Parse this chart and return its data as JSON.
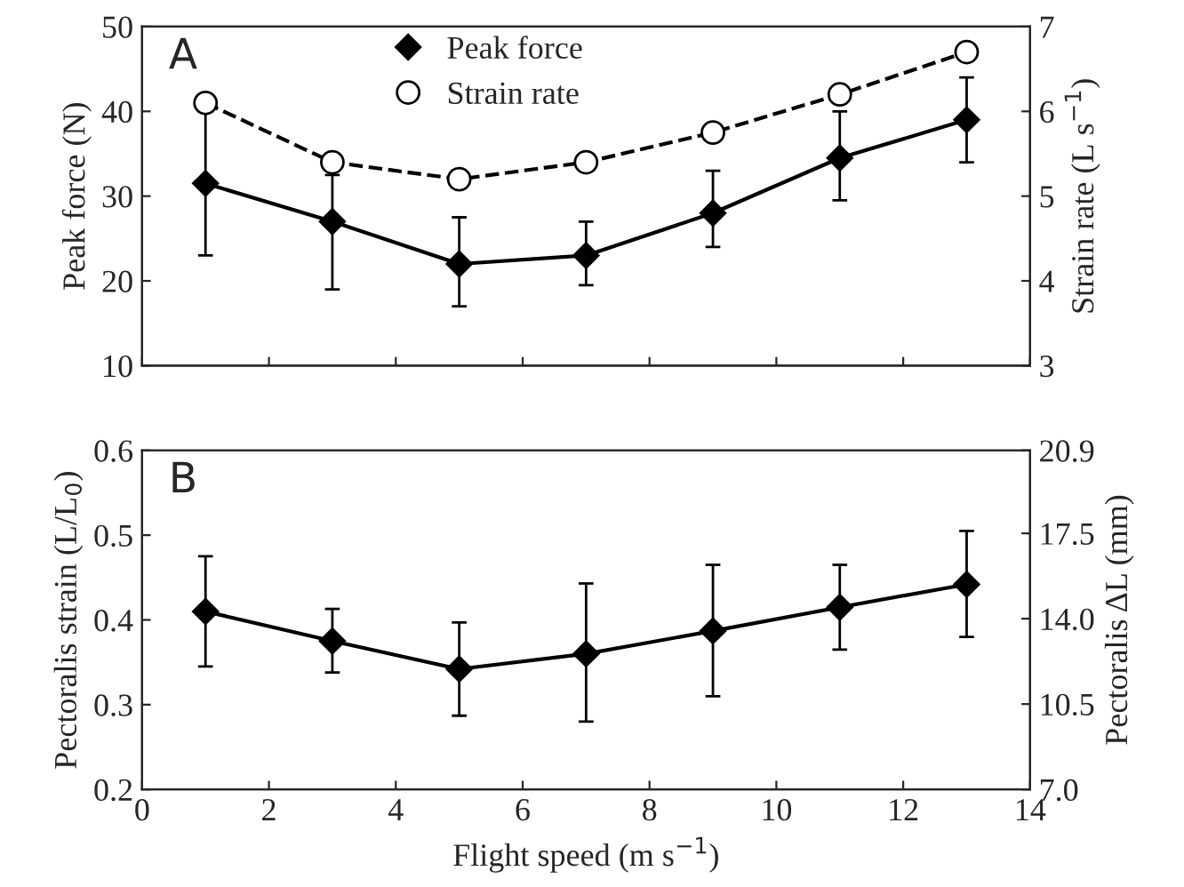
{
  "chart_data": [
    {
      "type": "line",
      "title": "A",
      "ylabel": "Peak force (N)",
      "y2label": "Strain rate (L s$^{−1}$)",
      "x": [
        1,
        3,
        5,
        7,
        9,
        11,
        13
      ],
      "xlim": [
        0,
        14
      ],
      "xticks": [
        0,
        2,
        4,
        6,
        8,
        10,
        12,
        14
      ],
      "ylim": [
        10,
        50
      ],
      "yticks": [
        10,
        20,
        30,
        40,
        50
      ],
      "y2lim": [
        3,
        7
      ],
      "y2ticks": [
        3,
        4,
        5,
        6,
        7
      ],
      "tick_labels": "y",
      "legend": "top",
      "grid": false,
      "series": [
        {
          "name": "Peak force",
          "color": "#000000",
          "marker": "diamond",
          "line_style": "solid",
          "values": [
            31.5,
            27,
            22,
            23,
            28,
            34.5,
            39
          ],
          "errors": [
            [
              23,
              40
            ],
            [
              19,
              32.5
            ],
            [
              17,
              27.5
            ],
            [
              19.5,
              27
            ],
            [
              24,
              33
            ],
            [
              29.5,
              40
            ],
            [
              34,
              44
            ]
          ]
        },
        {
          "name": "Strain rate",
          "color": "#000000",
          "marker": "circle",
          "line_style": "dashed",
          "axis": "y2",
          "values": [
            6.1,
            5.4,
            5.2,
            5.4,
            5.75,
            6.2,
            6.7
          ]
        }
      ]
    },
    {
      "type": "line",
      "title": "B",
      "xlabel": "Flight speed (m s$^{−1}$)",
      "ylabel": "Pectoralis strain (L/L$_{0}$)",
      "y2label": "Pectoralis ΔL (mm)",
      "x": [
        1,
        3,
        5,
        7,
        9,
        11,
        13
      ],
      "xlim": [
        0,
        14
      ],
      "xticks": [
        0,
        2,
        4,
        6,
        8,
        10,
        12,
        14
      ],
      "ylim": [
        0.2,
        0.6
      ],
      "yticks": [
        0.2,
        0.3,
        0.4,
        0.5,
        0.6
      ],
      "y2lim": [
        7.0,
        20.9
      ],
      "y2ticks": [
        {
          "value": 7.0,
          "label": "7.0"
        },
        {
          "value": 10.5,
          "label": "10.5"
        },
        {
          "value": 14.0,
          "label": "14.0"
        },
        {
          "value": 17.5,
          "label": "17.5"
        },
        {
          "value": 20.9,
          "label": "20.9"
        }
      ],
      "grid": false,
      "series": [
        {
          "color": "#000000",
          "marker": "diamond",
          "line_style": "solid",
          "values": [
            0.41,
            0.375,
            0.342,
            0.36,
            0.387,
            0.415,
            0.442
          ],
          "errors": [
            [
              0.345,
              0.475
            ],
            [
              0.338,
              0.413
            ],
            [
              0.287,
              0.397
            ],
            [
              0.28,
              0.443
            ],
            [
              0.31,
              0.465
            ],
            [
              0.365,
              0.465
            ],
            [
              0.38,
              0.505
            ]
          ]
        }
      ]
    }
  ]
}
